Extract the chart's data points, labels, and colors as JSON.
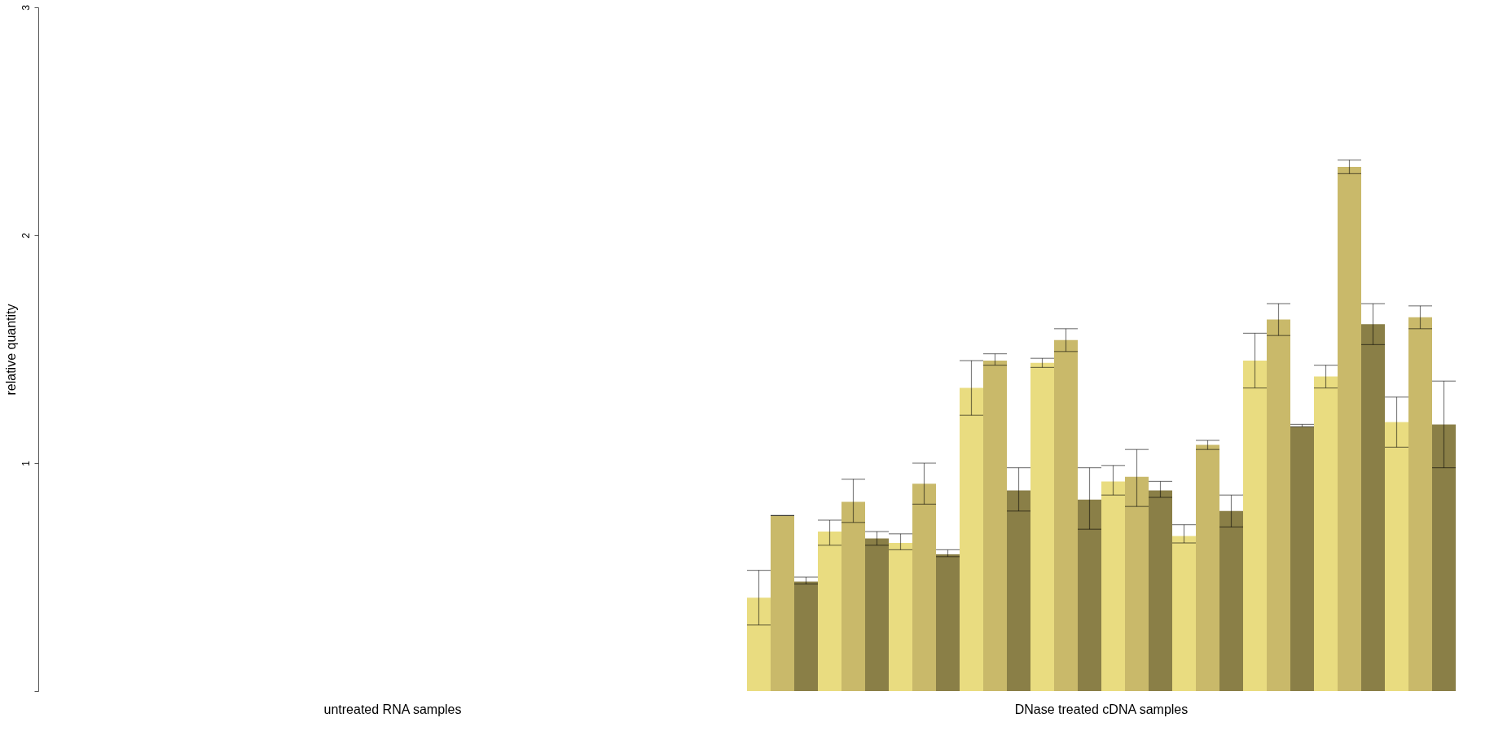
{
  "chart_data": {
    "type": "bar",
    "ylabel": "relative quantity",
    "categories": [
      "untreated RNA samples",
      "DNase treated cDNA samples"
    ],
    "series": [
      {
        "color": "#e9dc80",
        "values": [
          null,
          0.41
        ],
        "errors": [
          null,
          [
            0.29,
            0.53
          ]
        ]
      },
      {
        "color": "#c9b96a",
        "values": [
          null,
          0.77
        ],
        "errors": [
          null,
          [
            0.77,
            0.77
          ]
        ]
      },
      {
        "color": "#8a7f47",
        "values": [
          null,
          0.48
        ],
        "errors": [
          null,
          [
            0.47,
            0.5
          ]
        ]
      },
      {
        "color": "#e9dc80",
        "values": [
          null,
          0.7
        ],
        "errors": [
          null,
          [
            0.64,
            0.75
          ]
        ]
      },
      {
        "color": "#c9b96a",
        "values": [
          null,
          0.83
        ],
        "errors": [
          null,
          [
            0.74,
            0.93
          ]
        ]
      },
      {
        "color": "#8a7f47",
        "values": [
          null,
          0.67
        ],
        "errors": [
          null,
          [
            0.64,
            0.7
          ]
        ]
      },
      {
        "color": "#e9dc80",
        "values": [
          null,
          0.65
        ],
        "errors": [
          null,
          [
            0.62,
            0.69
          ]
        ]
      },
      {
        "color": "#c9b96a",
        "values": [
          null,
          0.91
        ],
        "errors": [
          null,
          [
            0.82,
            1.0
          ]
        ]
      },
      {
        "color": "#8a7f47",
        "values": [
          null,
          0.6
        ],
        "errors": [
          null,
          [
            0.59,
            0.62
          ]
        ]
      },
      {
        "color": "#e9dc80",
        "values": [
          null,
          1.33
        ],
        "errors": [
          null,
          [
            1.21,
            1.45
          ]
        ]
      },
      {
        "color": "#c9b96a",
        "values": [
          null,
          1.45
        ],
        "errors": [
          null,
          [
            1.43,
            1.48
          ]
        ]
      },
      {
        "color": "#8a7f47",
        "values": [
          null,
          0.88
        ],
        "errors": [
          null,
          [
            0.79,
            0.98
          ]
        ]
      },
      {
        "color": "#e9dc80",
        "values": [
          null,
          1.44
        ],
        "errors": [
          null,
          [
            1.42,
            1.46
          ]
        ]
      },
      {
        "color": "#c9b96a",
        "values": [
          null,
          1.54
        ],
        "errors": [
          null,
          [
            1.49,
            1.59
          ]
        ]
      },
      {
        "color": "#8a7f47",
        "values": [
          null,
          0.84
        ],
        "errors": [
          null,
          [
            0.71,
            0.98
          ]
        ]
      },
      {
        "color": "#e9dc80",
        "values": [
          null,
          0.92
        ],
        "errors": [
          null,
          [
            0.86,
            0.99
          ]
        ]
      },
      {
        "color": "#c9b96a",
        "values": [
          null,
          0.94
        ],
        "errors": [
          null,
          [
            0.81,
            1.06
          ]
        ]
      },
      {
        "color": "#8a7f47",
        "values": [
          null,
          0.88
        ],
        "errors": [
          null,
          [
            0.85,
            0.92
          ]
        ]
      },
      {
        "color": "#e9dc80",
        "values": [
          null,
          0.68
        ],
        "errors": [
          null,
          [
            0.65,
            0.73
          ]
        ]
      },
      {
        "color": "#c9b96a",
        "values": [
          null,
          1.08
        ],
        "errors": [
          null,
          [
            1.06,
            1.1
          ]
        ]
      },
      {
        "color": "#8a7f47",
        "values": [
          null,
          0.79
        ],
        "errors": [
          null,
          [
            0.72,
            0.86
          ]
        ]
      },
      {
        "color": "#e9dc80",
        "values": [
          null,
          1.45
        ],
        "errors": [
          null,
          [
            1.33,
            1.57
          ]
        ]
      },
      {
        "color": "#c9b96a",
        "values": [
          null,
          1.63
        ],
        "errors": [
          null,
          [
            1.56,
            1.7
          ]
        ]
      },
      {
        "color": "#8a7f47",
        "values": [
          null,
          1.16
        ],
        "errors": [
          null,
          [
            1.16,
            1.17
          ]
        ]
      },
      {
        "color": "#e9dc80",
        "values": [
          null,
          1.38
        ],
        "errors": [
          null,
          [
            1.33,
            1.43
          ]
        ]
      },
      {
        "color": "#c9b96a",
        "values": [
          null,
          2.3
        ],
        "errors": [
          null,
          [
            2.27,
            2.33
          ]
        ]
      },
      {
        "color": "#8a7f47",
        "values": [
          null,
          1.61
        ],
        "errors": [
          null,
          [
            1.52,
            1.7
          ]
        ]
      },
      {
        "color": "#e9dc80",
        "values": [
          null,
          1.18
        ],
        "errors": [
          null,
          [
            1.07,
            1.29
          ]
        ]
      },
      {
        "color": "#c9b96a",
        "values": [
          null,
          1.64
        ],
        "errors": [
          null,
          [
            1.59,
            1.69
          ]
        ]
      },
      {
        "color": "#8a7f47",
        "values": [
          null,
          1.17
        ],
        "errors": [
          null,
          [
            0.98,
            1.36
          ]
        ]
      }
    ],
    "ylim": [
      0,
      3
    ],
    "yticks": [
      {
        "value": 0,
        "label": null
      },
      1,
      2,
      3
    ],
    "grid": false,
    "legend": false
  }
}
